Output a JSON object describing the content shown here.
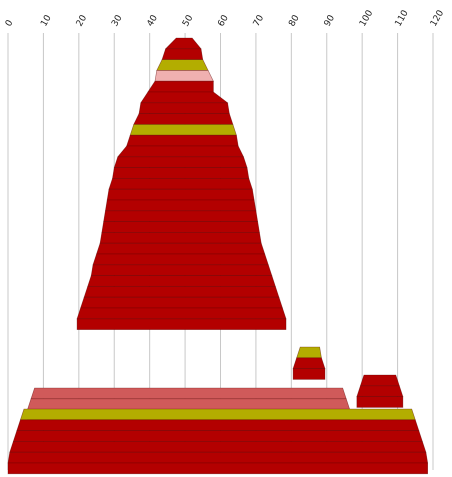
{
  "chart_data": {
    "type": "area",
    "title": "",
    "xlabel": "",
    "ylabel": "",
    "xlim": [
      0,
      120
    ],
    "ticks": [
      0,
      10,
      20,
      30,
      40,
      50,
      60,
      70,
      80,
      90,
      100,
      110,
      120
    ],
    "tick_labels": [
      "0",
      "10",
      "20",
      "30",
      "40",
      "50",
      "60",
      "70",
      "80",
      "90",
      "100",
      "110",
      "120"
    ],
    "grid": true,
    "colors": {
      "primary": "#b30000",
      "accent": "#b3ad00",
      "salmon": "#d05a5a",
      "pink": "#f0b0b0"
    },
    "stacks": [
      {
        "name": "",
        "levels": [
          {
            "left": 47.5,
            "right": 52.0,
            "color": "primary"
          },
          {
            "left": 44.5,
            "right": 54.5,
            "color": "primary"
          },
          {
            "left": 43.5,
            "right": 55.0,
            "color": "accent"
          },
          {
            "left": 42.0,
            "right": 56.5,
            "color": "pink"
          },
          {
            "left": 41.5,
            "right": 58.0,
            "color": "primary"
          },
          {
            "left": 39.5,
            "right": 58.0,
            "color": "primary"
          },
          {
            "left": 37.5,
            "right": 62.0,
            "color": "primary"
          },
          {
            "left": 37.0,
            "right": 62.5,
            "color": "primary"
          },
          {
            "left": 35.5,
            "right": 63.5,
            "color": "accent"
          },
          {
            "left": 34.5,
            "right": 64.5,
            "color": "primary"
          },
          {
            "left": 33.5,
            "right": 65.0,
            "color": "primary"
          },
          {
            "left": 31.0,
            "right": 66.5,
            "color": "primary"
          },
          {
            "left": 30.0,
            "right": 67.5,
            "color": "primary"
          },
          {
            "left": 29.5,
            "right": 68.0,
            "color": "primary"
          },
          {
            "left": 28.5,
            "right": 69.0,
            "color": "primary"
          },
          {
            "left": 28.0,
            "right": 69.5,
            "color": "primary"
          },
          {
            "left": 27.5,
            "right": 70.0,
            "color": "primary"
          },
          {
            "left": 27.0,
            "right": 70.5,
            "color": "primary"
          },
          {
            "left": 26.5,
            "right": 71.0,
            "color": "primary"
          },
          {
            "left": 26.0,
            "right": 71.5,
            "color": "primary"
          },
          {
            "left": 25.0,
            "right": 72.5,
            "color": "primary"
          },
          {
            "left": 24.0,
            "right": 73.5,
            "color": "primary"
          },
          {
            "left": 23.5,
            "right": 74.5,
            "color": "primary"
          },
          {
            "left": 22.5,
            "right": 75.5,
            "color": "primary"
          },
          {
            "left": 21.5,
            "right": 76.5,
            "color": "primary"
          },
          {
            "left": 20.5,
            "right": 77.5,
            "color": "primary"
          },
          {
            "left": 19.5,
            "right": 78.5,
            "color": "primary"
          }
        ]
      },
      {
        "name": "",
        "levels": [
          {
            "left": 82.5,
            "right": 88.0,
            "color": "accent"
          },
          {
            "left": 81.5,
            "right": 88.5,
            "color": "primary"
          },
          {
            "left": 80.5,
            "right": 89.5,
            "color": "primary"
          }
        ]
      },
      {
        "name": "",
        "levels": [
          {
            "left": 100.5,
            "right": 109.5,
            "color": "primary"
          },
          {
            "left": 99.5,
            "right": 110.5,
            "color": "primary"
          },
          {
            "left": 98.5,
            "right": 111.5,
            "color": "primary"
          }
        ]
      },
      {
        "name": "",
        "levels": [
          {
            "left": 7.5,
            "right": 94.5,
            "color": "salmon"
          },
          {
            "left": 6.5,
            "right": 95.5,
            "color": "salmon"
          },
          {
            "left": 5.5,
            "right": 96.5,
            "color": "primary"
          }
        ]
      },
      {
        "name": "",
        "levels": [
          {
            "left": 4.5,
            "right": 114.0,
            "color": "accent"
          },
          {
            "left": 3.5,
            "right": 115.0,
            "color": "primary"
          },
          {
            "left": 2.5,
            "right": 116.0,
            "color": "primary"
          },
          {
            "left": 1.5,
            "right": 117.0,
            "color": "primary"
          },
          {
            "left": 0.5,
            "right": 118.0,
            "color": "primary"
          },
          {
            "left": 0.0,
            "right": 118.5,
            "color": "primary"
          }
        ]
      }
    ]
  }
}
